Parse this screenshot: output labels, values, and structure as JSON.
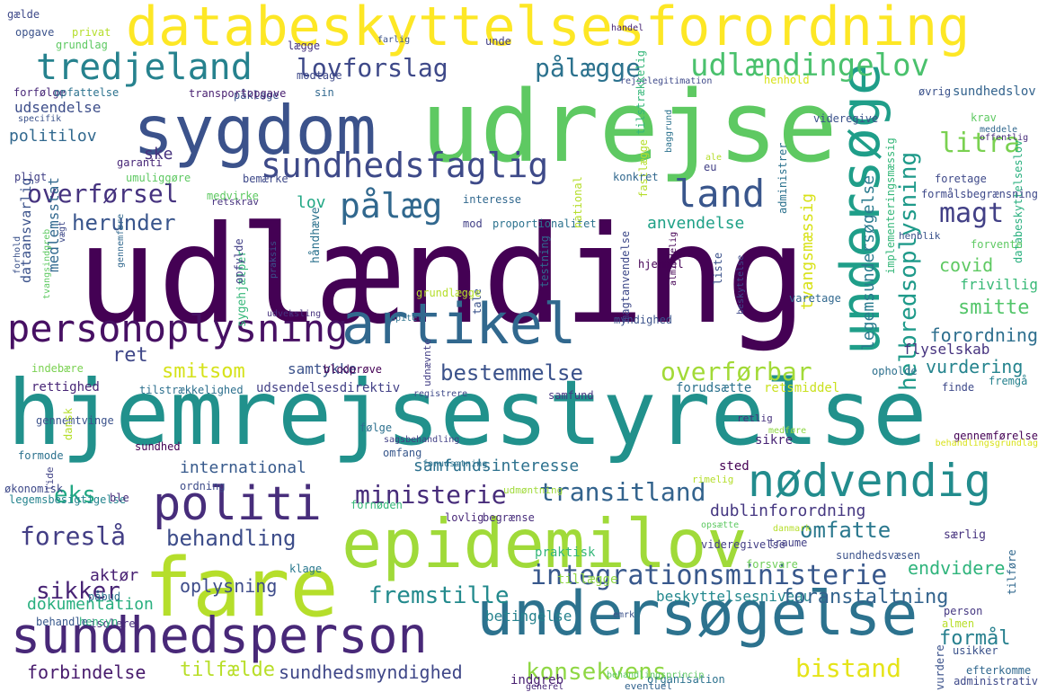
{
  "words": [
    {
      "text": "udlænding",
      "color": "#440154"
    },
    {
      "text": "hjemrejsestyrelse",
      "color": "#21918c"
    },
    {
      "text": "udrejse",
      "color": "#5ec962"
    },
    {
      "text": "databeskyttelsesforordning",
      "color": "#fde725"
    },
    {
      "text": "sygdom",
      "color": "#3b528b"
    },
    {
      "text": "fare",
      "color": "#b5de2b"
    },
    {
      "text": "epidemilov",
      "color": "#a0da39"
    },
    {
      "text": "undersøgelse",
      "color": "#2c728e"
    },
    {
      "text": "sundhedsperson",
      "color": "#482878"
    },
    {
      "text": "personoplysning",
      "color": "#471063"
    },
    {
      "text": "artikel",
      "color": "#31688e"
    },
    {
      "text": "politi",
      "color": "#472d7b"
    },
    {
      "text": "undersøge",
      "color": "#1f9e89"
    },
    {
      "text": "tredjeland",
      "color": "#26828e"
    },
    {
      "text": "udlændingelov",
      "color": "#4ac16d"
    },
    {
      "text": "sundhedsfaglig",
      "color": "#3e4a89"
    },
    {
      "text": "nødvendig",
      "color": "#228c8d"
    },
    {
      "text": "land",
      "color": "#39568c"
    },
    {
      "text": "pålæg",
      "color": "#31688e"
    },
    {
      "text": "helbredsoplysning",
      "color": "#1f9a8a"
    },
    {
      "text": "lovforslag",
      "color": "#3e4989"
    },
    {
      "text": "pålægge",
      "color": "#2c728e"
    },
    {
      "text": "ministerie",
      "color": "#472c7a"
    },
    {
      "text": "transitland",
      "color": "#33638d"
    },
    {
      "text": "integrationsministerie",
      "color": "#38588c"
    },
    {
      "text": "overførsel",
      "color": "#46337f"
    },
    {
      "text": "herunder",
      "color": "#39558c"
    },
    {
      "text": "litra",
      "color": "#7ad151"
    },
    {
      "text": "magt",
      "color": "#424086"
    },
    {
      "text": "ret",
      "color": "#3f4788"
    },
    {
      "text": "bestemmelse",
      "color": "#3b528b"
    },
    {
      "text": "overførbar",
      "color": "#a2da37"
    },
    {
      "text": "smitsom",
      "color": "#d5e21a"
    },
    {
      "text": "eks",
      "color": "#22a884"
    },
    {
      "text": "foreslå",
      "color": "#433e85"
    },
    {
      "text": "behandling",
      "color": "#3d4d8a"
    },
    {
      "text": "omfatte",
      "color": "#2a788e"
    },
    {
      "text": "sikker",
      "color": "#482475"
    },
    {
      "text": "fremstille",
      "color": "#238a8d"
    },
    {
      "text": "konsekvens",
      "color": "#8fd744"
    },
    {
      "text": "bistand",
      "color": "#e5e419"
    },
    {
      "text": "sundhedsmyndighed",
      "color": "#3f4788"
    },
    {
      "text": "forbindelse",
      "color": "#481b6d"
    },
    {
      "text": "tilfælde",
      "color": "#b8de29"
    },
    {
      "text": "dokumentation",
      "color": "#29af7f"
    },
    {
      "text": "aktør",
      "color": "#482173"
    },
    {
      "text": "oplysning",
      "color": "#3e4c8a"
    },
    {
      "text": "international",
      "color": "#375a8c"
    },
    {
      "text": "samfundsinteresse",
      "color": "#2d718e"
    },
    {
      "text": "dublinforordning",
      "color": "#453781"
    },
    {
      "text": "betingelse",
      "color": "#26828e"
    },
    {
      "text": "beskyttelsesniveau",
      "color": "#23888e"
    },
    {
      "text": "foranstaltning",
      "color": "#33638d"
    },
    {
      "text": "formål",
      "color": "#27808e"
    },
    {
      "text": "endvidere",
      "color": "#2fb47c"
    },
    {
      "text": "vurdering",
      "color": "#25848e"
    },
    {
      "text": "smitte",
      "color": "#52c569"
    },
    {
      "text": "forordning",
      "color": "#2e6f8e"
    },
    {
      "text": "covid",
      "color": "#5ec962"
    },
    {
      "text": "anvendelse",
      "color": "#1fa187"
    },
    {
      "text": "legemsundersøgelse",
      "color": "#297b8e"
    },
    {
      "text": "tvangsmæssig",
      "color": "#d8e219"
    },
    {
      "text": "samtykke",
      "color": "#3b528b"
    },
    {
      "text": "lov",
      "color": "#22a785"
    },
    {
      "text": "ske",
      "color": "#46327e"
    },
    {
      "text": "politilov",
      "color": "#31688e"
    },
    {
      "text": "udsendelse",
      "color": "#3d4e8a"
    },
    {
      "text": "medlemsstat",
      "color": "#31688e"
    },
    {
      "text": "rettighed",
      "color": "#482677"
    },
    {
      "text": "tilstrækkelighed",
      "color": "#2d708e"
    },
    {
      "text": "udsendelsesdirektiv",
      "color": "#424086"
    },
    {
      "text": "retsmiddel",
      "color": "#cae11f"
    },
    {
      "text": "forudsætte",
      "color": "#2c728e"
    },
    {
      "text": "blodprøve",
      "color": "#440154"
    },
    {
      "text": "indebære",
      "color": "#7ad151"
    },
    {
      "text": "dataansvarlig",
      "color": "#3b528b"
    },
    {
      "text": "flyselskab",
      "color": "#46337f"
    },
    {
      "text": "databeskyttelseslov",
      "color": "#2ab07f"
    },
    {
      "text": "frivillig",
      "color": "#38b977"
    },
    {
      "text": "opholde",
      "color": "#2d708e"
    },
    {
      "text": "finde",
      "color": "#3e4989"
    },
    {
      "text": "fremgå",
      "color": "#26828e"
    },
    {
      "text": "sikre",
      "color": "#482475"
    },
    {
      "text": "sted",
      "color": "#440154"
    },
    {
      "text": "lovlig",
      "color": "#482878"
    },
    {
      "text": "begrænse",
      "color": "#472d7b"
    },
    {
      "text": "særlig",
      "color": "#46327e"
    },
    {
      "text": "videregivelse",
      "color": "#433e85"
    },
    {
      "text": "sundhedsvæsen",
      "color": "#3b528b"
    },
    {
      "text": "traume",
      "color": "#424086"
    },
    {
      "text": "forsvare",
      "color": "#6ece58"
    },
    {
      "text": "tillægge",
      "color": "#90d743"
    },
    {
      "text": "praktisk",
      "color": "#35b779"
    },
    {
      "text": "klage",
      "color": "#2a788e"
    },
    {
      "text": "isolere",
      "color": "#472d7b"
    },
    {
      "text": "påbud",
      "color": "#2c728e"
    },
    {
      "text": "hensyn",
      "color": "#2db27d"
    },
    {
      "text": "behandle",
      "color": "#38588c"
    },
    {
      "text": "almen",
      "color": "#b8de29"
    },
    {
      "text": "usikker",
      "color": "#3b528b"
    },
    {
      "text": "efterkomme",
      "color": "#31688e"
    },
    {
      "text": "administrativ",
      "color": "#3e4989"
    },
    {
      "text": "organisation",
      "color": "#2c728e"
    },
    {
      "text": "indgreb",
      "color": "#481f70"
    },
    {
      "text": "behandlingsprincip",
      "color": "#5ec962"
    },
    {
      "text": "generel",
      "color": "#482878"
    },
    {
      "text": "eventuel",
      "color": "#33638d"
    },
    {
      "text": "person",
      "color": "#453781"
    },
    {
      "text": "vurdere",
      "color": "#3b528b"
    },
    {
      "text": "formode",
      "color": "#2c728e"
    },
    {
      "text": "økonomisk",
      "color": "#3e4989"
    },
    {
      "text": "legemsbesigtigelse",
      "color": "#25848e"
    },
    {
      "text": "ordning",
      "color": "#3e4c8a"
    },
    {
      "text": "sundhed",
      "color": "#440154"
    },
    {
      "text": "ble",
      "color": "#472d7b"
    },
    {
      "text": "fornøden",
      "color": "#35b779"
    },
    {
      "text": "følge",
      "color": "#2d708e"
    },
    {
      "text": "gennemtvinge",
      "color": "#3b528b"
    },
    {
      "text": "lide",
      "color": "#414487"
    },
    {
      "text": "dansk",
      "color": "#b5de2b"
    },
    {
      "text": "omfang",
      "color": "#38588c"
    },
    {
      "text": "sagsbehandling",
      "color": "#424086"
    },
    {
      "text": "forudsætning",
      "color": "#2c728e"
    },
    {
      "text": "retlig",
      "color": "#46327e"
    },
    {
      "text": "medføre",
      "color": "#8fd744"
    },
    {
      "text": "gennemførelse",
      "color": "#440154"
    },
    {
      "text": "behandlingsgrundlag",
      "color": "#d8e219"
    },
    {
      "text": "registrere",
      "color": "#3e4989"
    },
    {
      "text": "samfund",
      "color": "#453781"
    },
    {
      "text": "udnævnte",
      "color": "#433e85"
    },
    {
      "text": "udmøntning",
      "color": "#a0da39"
    },
    {
      "text": "gælde",
      "color": "#3e4989"
    },
    {
      "text": "opgave",
      "color": "#3b528b"
    },
    {
      "text": "privat",
      "color": "#b5de2b"
    },
    {
      "text": "grundlag",
      "color": "#5ec962"
    },
    {
      "text": "forfølge",
      "color": "#482878"
    },
    {
      "text": "opfattelse",
      "color": "#2c728e"
    },
    {
      "text": "lægge",
      "color": "#46327e"
    },
    {
      "text": "modtage",
      "color": "#3e4989"
    },
    {
      "text": "påklage",
      "color": "#3b528b"
    },
    {
      "text": "transportopgave",
      "color": "#481f70"
    },
    {
      "text": "sin",
      "color": "#31688e"
    },
    {
      "text": "farlig",
      "color": "#3b528b"
    },
    {
      "text": "unde",
      "color": "#424086"
    },
    {
      "text": "handel",
      "color": "#482475"
    },
    {
      "text": "rejselegitimation",
      "color": "#3e4989"
    },
    {
      "text": "henhold",
      "color": "#d8e219"
    },
    {
      "text": "øvrig",
      "color": "#3b528b"
    },
    {
      "text": "sundhedslov",
      "color": "#33638d"
    },
    {
      "text": "specifik",
      "color": "#3b528b"
    },
    {
      "text": "forhold",
      "color": "#3b528b"
    },
    {
      "text": "garanti",
      "color": "#482878"
    },
    {
      "text": "umuliggøre",
      "color": "#5ec962"
    },
    {
      "text": "pligt",
      "color": "#424086"
    },
    {
      "text": "bemærke",
      "color": "#3e4989"
    },
    {
      "text": "retskrav",
      "color": "#46327e"
    },
    {
      "text": "medvirke",
      "color": "#5ec962"
    },
    {
      "text": "tilstrækkelig",
      "color": "#35b779"
    },
    {
      "text": "baggrund",
      "color": "#2c728e"
    },
    {
      "text": "fastlægge",
      "color": "#b5de2b"
    },
    {
      "text": "konkret",
      "color": "#31688e"
    },
    {
      "text": "eu",
      "color": "#424086"
    },
    {
      "text": "ale",
      "color": "#b5de2b"
    },
    {
      "text": "videregive",
      "color": "#3b528b"
    },
    {
      "text": "krav",
      "color": "#5ec962"
    },
    {
      "text": "meddele",
      "color": "#31688e"
    },
    {
      "text": "offentlig",
      "color": "#472d7b"
    },
    {
      "text": "foretage",
      "color": "#3e4989"
    },
    {
      "text": "formålsbegrænsning",
      "color": "#3e4989"
    },
    {
      "text": "henblik",
      "color": "#3b528b"
    },
    {
      "text": "forvente",
      "color": "#5ec962"
    },
    {
      "text": "administrer",
      "color": "#2c728e"
    },
    {
      "text": "implementeringsmæssig",
      "color": "#35b779"
    },
    {
      "text": "interesse",
      "color": "#31688e"
    },
    {
      "text": "mod",
      "color": "#424086"
    },
    {
      "text": "proportionalitet",
      "color": "#2c728e"
    },
    {
      "text": "tale",
      "color": "#3b528b"
    },
    {
      "text": "national",
      "color": "#b5de2b"
    },
    {
      "text": "testning",
      "color": "#31688e"
    },
    {
      "text": "liste",
      "color": "#3b528b"
    },
    {
      "text": "hjemmel",
      "color": "#440154"
    },
    {
      "text": "håndhæve",
      "color": "#2c728e"
    },
    {
      "text": "sygehjælper",
      "color": "#35b779"
    },
    {
      "text": "opfylde",
      "color": "#424086"
    },
    {
      "text": "praksis",
      "color": "#3b528b"
    },
    {
      "text": "gennemføre",
      "color": "#31688e"
    },
    {
      "text": "tvangsindgreb",
      "color": "#5ec962"
    },
    {
      "text": "vægt",
      "color": "#3e4989"
    },
    {
      "text": "grundlægge",
      "color": "#b5de2b"
    },
    {
      "text": "udveksling",
      "color": "#46327e"
    },
    {
      "text": "kapitel",
      "color": "#2c728e"
    },
    {
      "text": "almindelig",
      "color": "#440154"
    },
    {
      "text": "varetage",
      "color": "#31688e"
    },
    {
      "text": "myndighed",
      "color": "#3b528b"
    },
    {
      "text": "magtanvendelse",
      "color": "#3e4989"
    },
    {
      "text": "beskyttelse",
      "color": "#3e4989"
    },
    {
      "text": "rimelig",
      "color": "#b5de2b"
    },
    {
      "text": "opsætte",
      "color": "#5ec962"
    },
    {
      "text": "danmark",
      "color": "#b5de2b"
    },
    {
      "text": "emrk",
      "color": "#3b528b"
    },
    {
      "text": "tilføre",
      "color": "#31688e"
    }
  ]
}
